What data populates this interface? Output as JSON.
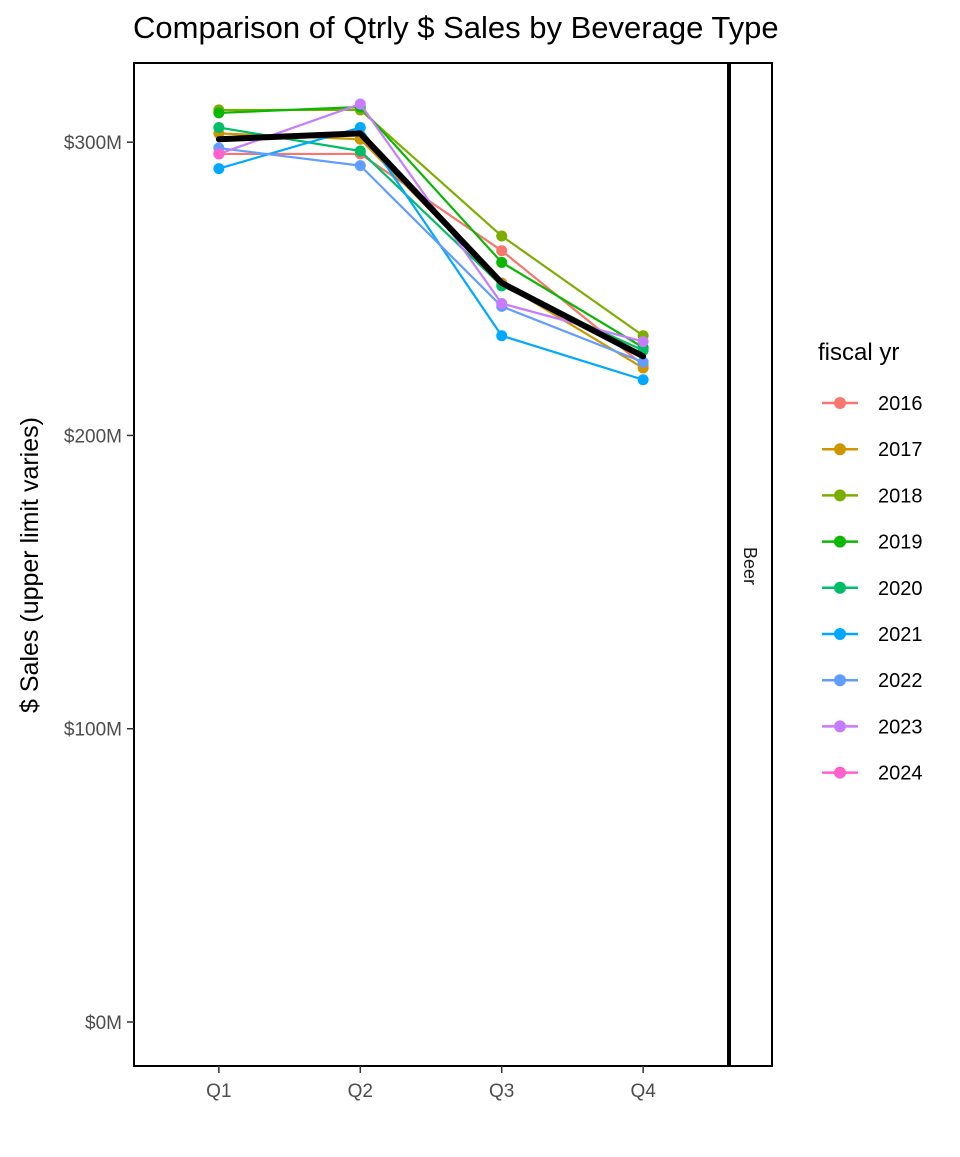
{
  "chart_data": {
    "type": "line",
    "title": "Comparison of Qtrly $ Sales by Beverage Type",
    "xlabel": "",
    "ylabel": "$ Sales (upper limit varies)",
    "categories": [
      "Q1",
      "Q2",
      "Q3",
      "Q4"
    ],
    "ylim": [
      -15000000,
      327000000
    ],
    "yticks": [
      0,
      100000000,
      200000000,
      300000000
    ],
    "ytick_labels": [
      "$0M",
      "$100M",
      "$200M",
      "$300M"
    ],
    "facet_label": "Beer",
    "legend": {
      "title": "fiscal yr",
      "position": "right"
    },
    "grid": false,
    "series": [
      {
        "name": "2016",
        "color": "#F8766D",
        "values": [
          296000000,
          296000000,
          263000000,
          224000000
        ]
      },
      {
        "name": "2017",
        "color": "#CD9600",
        "values": [
          303000000,
          301000000,
          252000000,
          223000000
        ]
      },
      {
        "name": "2018",
        "color": "#7CAE00",
        "values": [
          311000000,
          311000000,
          268000000,
          234000000
        ]
      },
      {
        "name": "2019",
        "color": "#0CB702",
        "values": [
          310000000,
          312000000,
          259000000,
          230000000
        ]
      },
      {
        "name": "2020",
        "color": "#00BE67",
        "values": [
          305000000,
          297000000,
          251000000,
          229000000
        ]
      },
      {
        "name": "2021",
        "color": "#00A9FF",
        "values": [
          291000000,
          305000000,
          234000000,
          219000000
        ]
      },
      {
        "name": "2022",
        "color": "#619CFF",
        "values": [
          298000000,
          292000000,
          244000000,
          225000000
        ]
      },
      {
        "name": "2023",
        "color": "#C77CFF",
        "values": [
          296000000,
          313000000,
          245000000,
          232000000
        ]
      },
      {
        "name": "2024",
        "color": "#FF61CC",
        "values": [
          296000000,
          null,
          null,
          null
        ]
      }
    ],
    "average_line": {
      "color": "#000000",
      "values": [
        301000000,
        303000000,
        252000000,
        227000000
      ]
    }
  }
}
